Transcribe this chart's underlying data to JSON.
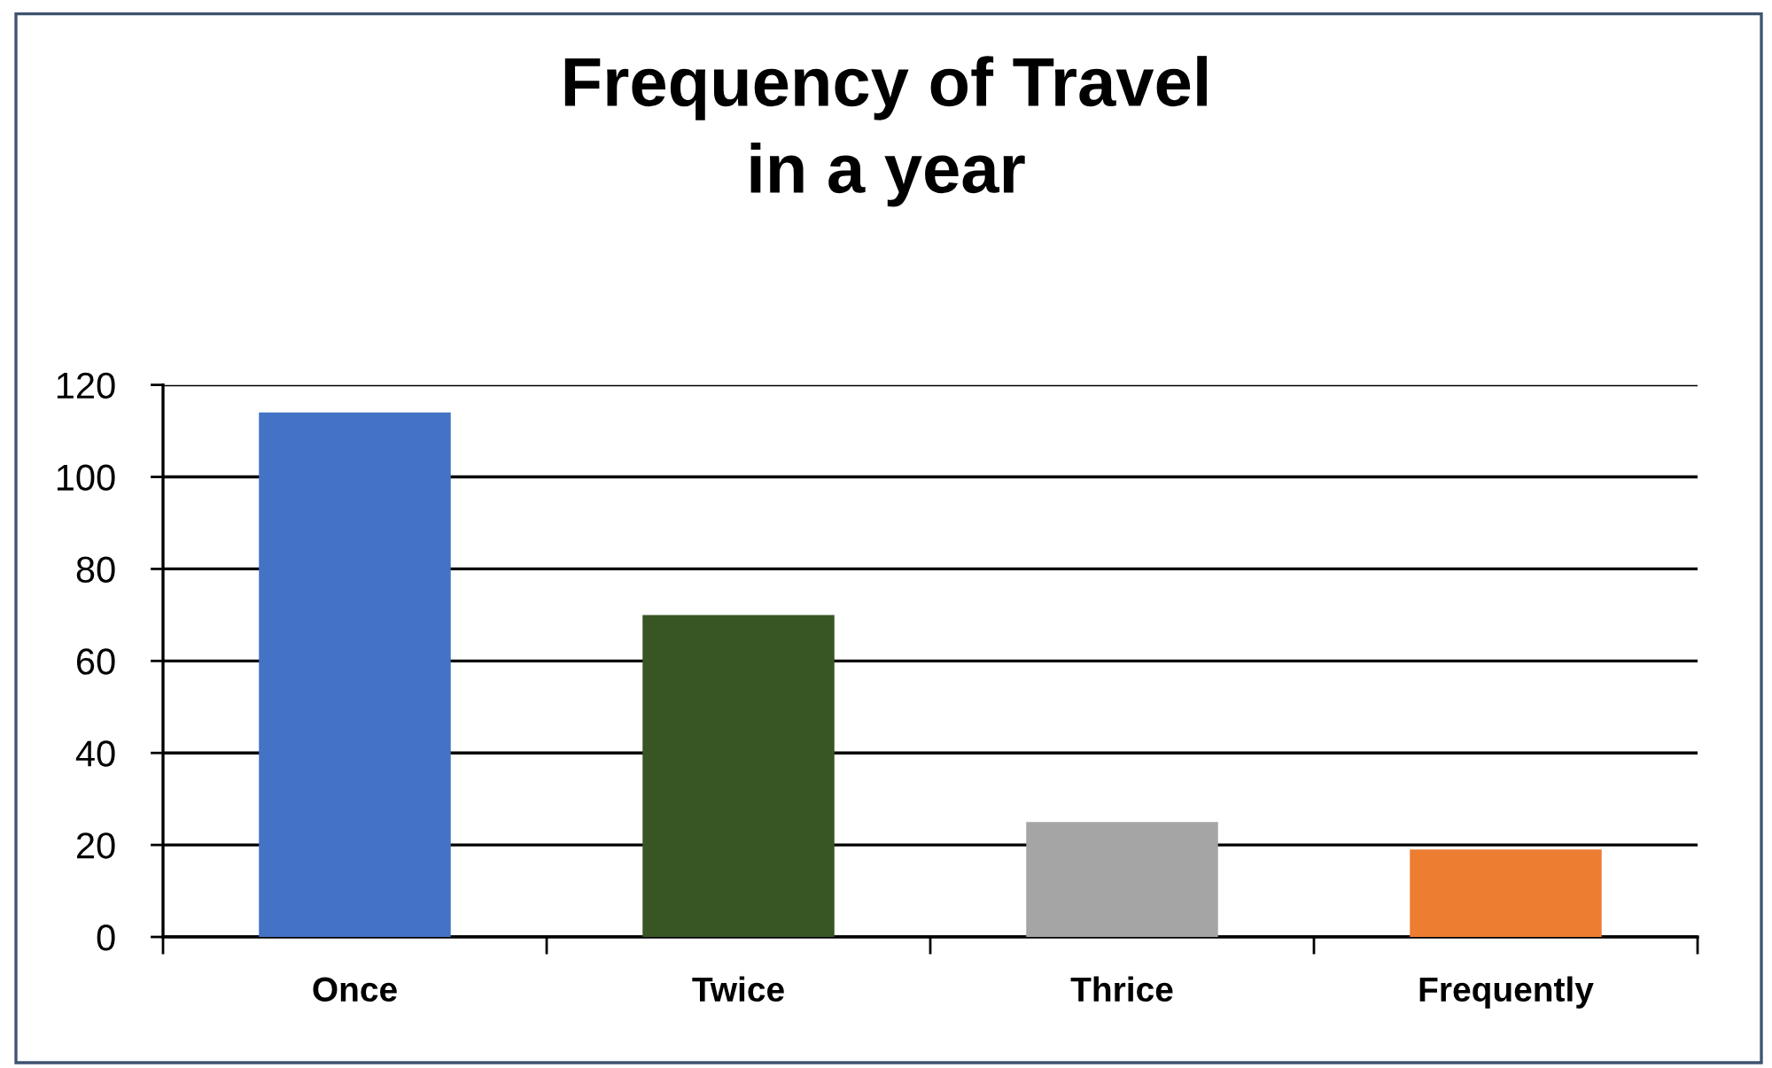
{
  "chart_data": {
    "type": "bar",
    "title": "Frequency of Travel\nin a year",
    "categories": [
      "Once",
      "Twice",
      "Thrice",
      "Frequently"
    ],
    "values": [
      114,
      70,
      25,
      19
    ],
    "colors": [
      "#4472c4",
      "#375623",
      "#a5a5a5",
      "#ed7d31"
    ],
    "ylim": [
      0,
      120
    ],
    "yticks": [
      0,
      20,
      40,
      60,
      80,
      100,
      120
    ],
    "grid": "y",
    "legend": false
  }
}
